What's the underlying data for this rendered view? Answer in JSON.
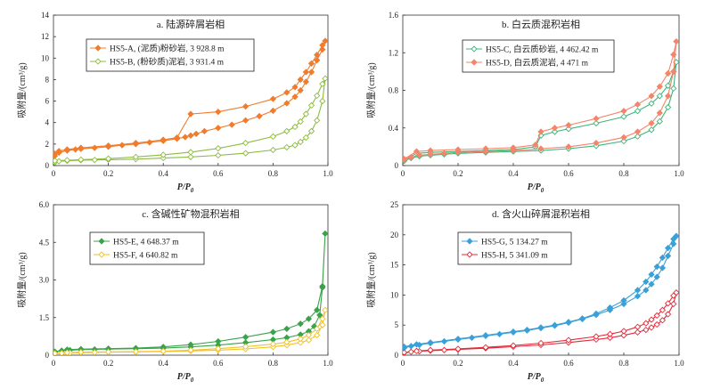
{
  "chart_data": [
    {
      "type": "line",
      "title": "a. 陆源碎屑岩相",
      "xlabel_main": "P/P",
      "xlabel_sub": "0",
      "ylabel": "吸附量/(cm³/g)",
      "xlim": [
        0,
        1.0
      ],
      "ylim": [
        0,
        14
      ],
      "xticks": [
        "0",
        "0.2",
        "0.4",
        "0.6",
        "0.8",
        "1.0"
      ],
      "yticks": [
        "0",
        "2",
        "4",
        "6",
        "8",
        "10",
        "12",
        "14"
      ],
      "legend_position": "top-left",
      "series": [
        {
          "name": "HS5-A, (泥质)粉砂岩, 3 928.8 m",
          "color": "#f07c2c",
          "marker": "diamond-filled",
          "x": [
            0.005,
            0.02,
            0.05,
            0.08,
            0.1,
            0.15,
            0.2,
            0.25,
            0.3,
            0.35,
            0.4,
            0.45,
            0.48,
            0.5,
            0.52,
            0.55,
            0.6,
            0.65,
            0.7,
            0.75,
            0.8,
            0.85,
            0.88,
            0.9,
            0.92,
            0.94,
            0.96,
            0.98,
            0.99,
            0.98,
            0.96,
            0.94,
            0.92,
            0.9,
            0.88,
            0.85,
            0.8,
            0.7,
            0.6,
            0.5,
            0.45,
            0.4,
            0.3,
            0.2,
            0.1,
            0.05,
            0.02,
            0.005
          ],
          "y": [
            0.9,
            1.2,
            1.4,
            1.5,
            1.55,
            1.65,
            1.75,
            1.9,
            2.0,
            2.15,
            2.3,
            2.5,
            2.65,
            2.8,
            2.95,
            3.2,
            3.5,
            3.8,
            4.2,
            4.6,
            5.1,
            5.8,
            6.4,
            7.0,
            7.8,
            8.7,
            9.8,
            10.8,
            11.6,
            11.2,
            10.3,
            9.5,
            8.7,
            8.0,
            7.3,
            6.8,
            6.2,
            5.5,
            5.0,
            4.8,
            2.6,
            2.4,
            2.1,
            1.85,
            1.65,
            1.5,
            1.35,
            1.1
          ]
        },
        {
          "name": "HS5-B, (粉砂质)泥岩, 3 931.4 m",
          "color": "#8cbd3f",
          "marker": "diamond-open",
          "x": [
            0.005,
            0.02,
            0.05,
            0.1,
            0.15,
            0.2,
            0.3,
            0.4,
            0.5,
            0.6,
            0.7,
            0.8,
            0.85,
            0.88,
            0.9,
            0.92,
            0.94,
            0.96,
            0.98,
            0.99,
            0.98,
            0.96,
            0.94,
            0.92,
            0.9,
            0.88,
            0.85,
            0.8,
            0.7,
            0.6,
            0.5,
            0.4,
            0.3,
            0.2,
            0.1,
            0.05,
            0.005
          ],
          "y": [
            0.3,
            0.4,
            0.45,
            0.5,
            0.52,
            0.55,
            0.6,
            0.7,
            0.8,
            0.95,
            1.15,
            1.45,
            1.7,
            1.9,
            2.2,
            2.6,
            3.2,
            4.2,
            6.0,
            8.1,
            7.6,
            6.5,
            5.6,
            4.8,
            4.1,
            3.6,
            3.2,
            2.7,
            2.1,
            1.6,
            1.25,
            1.0,
            0.8,
            0.65,
            0.55,
            0.5,
            0.45
          ]
        }
      ]
    },
    {
      "type": "line",
      "title": "b. 白云质混积岩相",
      "xlabel_main": "P/P",
      "xlabel_sub": "0",
      "ylabel": "吸附量/(cm³/g)",
      "xlim": [
        0,
        1.0
      ],
      "ylim": [
        0,
        1.6
      ],
      "xticks": [
        "0",
        "0.2",
        "0.4",
        "0.6",
        "0.8",
        "1.0"
      ],
      "yticks": [
        "0",
        "0.4",
        "0.8",
        "1.2",
        "1.6"
      ],
      "legend_position": "top-left",
      "series": [
        {
          "name": "HS5-C, 白云质砂岩, 4 462.42 m",
          "color": "#3db57a",
          "marker": "diamond-open",
          "x": [
            0.005,
            0.03,
            0.06,
            0.1,
            0.15,
            0.2,
            0.3,
            0.4,
            0.5,
            0.6,
            0.7,
            0.8,
            0.85,
            0.9,
            0.93,
            0.96,
            0.98,
            0.99,
            0.98,
            0.96,
            0.93,
            0.9,
            0.85,
            0.8,
            0.7,
            0.6,
            0.55,
            0.5,
            0.48,
            0.4,
            0.3,
            0.2,
            0.1,
            0.05,
            0.005
          ],
          "y": [
            0.05,
            0.08,
            0.1,
            0.11,
            0.12,
            0.13,
            0.14,
            0.15,
            0.16,
            0.18,
            0.21,
            0.26,
            0.31,
            0.38,
            0.47,
            0.62,
            0.82,
            1.1,
            1.0,
            0.85,
            0.74,
            0.66,
            0.58,
            0.52,
            0.45,
            0.39,
            0.36,
            0.32,
            0.2,
            0.17,
            0.16,
            0.15,
            0.14,
            0.13,
            0.06
          ]
        },
        {
          "name": "HS5-D, 白云质泥岩, 4 471 m",
          "color": "#f4846a",
          "marker": "diamond-filled",
          "x": [
            0.005,
            0.03,
            0.06,
            0.1,
            0.15,
            0.2,
            0.3,
            0.4,
            0.5,
            0.6,
            0.7,
            0.8,
            0.85,
            0.9,
            0.93,
            0.96,
            0.98,
            0.99,
            0.98,
            0.96,
            0.93,
            0.9,
            0.85,
            0.8,
            0.7,
            0.6,
            0.55,
            0.5,
            0.48,
            0.4,
            0.3,
            0.2,
            0.1,
            0.05,
            0.005
          ],
          "y": [
            0.06,
            0.09,
            0.11,
            0.12,
            0.13,
            0.14,
            0.15,
            0.16,
            0.18,
            0.2,
            0.24,
            0.3,
            0.36,
            0.45,
            0.56,
            0.74,
            1.0,
            1.32,
            1.18,
            0.98,
            0.84,
            0.74,
            0.65,
            0.58,
            0.5,
            0.43,
            0.4,
            0.36,
            0.22,
            0.19,
            0.18,
            0.17,
            0.16,
            0.15,
            0.07
          ]
        }
      ]
    },
    {
      "type": "line",
      "title": "c. 含碱性矿物混积岩相",
      "xlabel_main": "P/P",
      "xlabel_sub": "0",
      "ylabel": "吸附量/(cm³/g)",
      "xlim": [
        0,
        1.0
      ],
      "ylim": [
        0,
        6.0
      ],
      "xticks": [
        "0",
        "0.2",
        "0.4",
        "0.6",
        "0.8",
        "1.0"
      ],
      "yticks": [
        "0",
        "1.5",
        "3.0",
        "4.5",
        "6.0"
      ],
      "legend_position": "top-left",
      "series": [
        {
          "name": "HS5-E, 4 648.37 m",
          "color": "#3aa34a",
          "marker": "diamond-filled",
          "x": [
            0.005,
            0.03,
            0.06,
            0.1,
            0.15,
            0.2,
            0.3,
            0.4,
            0.5,
            0.6,
            0.7,
            0.8,
            0.85,
            0.9,
            0.93,
            0.95,
            0.97,
            0.98,
            0.99,
            0.98,
            0.96,
            0.93,
            0.9,
            0.85,
            0.8,
            0.7,
            0.6,
            0.5,
            0.4,
            0.3,
            0.2,
            0.1,
            0.05,
            0.005
          ],
          "y": [
            0.12,
            0.18,
            0.2,
            0.22,
            0.23,
            0.24,
            0.26,
            0.28,
            0.33,
            0.4,
            0.5,
            0.62,
            0.7,
            0.82,
            0.95,
            1.15,
            1.6,
            2.7,
            4.85,
            2.75,
            1.8,
            1.45,
            1.25,
            1.05,
            0.92,
            0.72,
            0.55,
            0.42,
            0.33,
            0.28,
            0.26,
            0.24,
            0.22,
            0.14
          ]
        },
        {
          "name": "HS5-F, 4 640.82 m",
          "color": "#f2c225",
          "marker": "diamond-open",
          "x": [
            0.005,
            0.03,
            0.06,
            0.1,
            0.15,
            0.2,
            0.3,
            0.4,
            0.5,
            0.6,
            0.7,
            0.8,
            0.85,
            0.9,
            0.93,
            0.96,
            0.98,
            0.99,
            0.98,
            0.96,
            0.93,
            0.9,
            0.85,
            0.8,
            0.7,
            0.6,
            0.5,
            0.4,
            0.3,
            0.2,
            0.1,
            0.05,
            0.005
          ],
          "y": [
            0.06,
            0.08,
            0.09,
            0.1,
            0.11,
            0.12,
            0.13,
            0.15,
            0.17,
            0.2,
            0.25,
            0.33,
            0.4,
            0.5,
            0.6,
            0.8,
            1.2,
            1.8,
            1.45,
            1.05,
            0.8,
            0.65,
            0.52,
            0.44,
            0.34,
            0.26,
            0.2,
            0.16,
            0.14,
            0.13,
            0.12,
            0.1,
            0.07
          ]
        }
      ]
    },
    {
      "type": "line",
      "title": "d. 含火山碎屑混积岩相",
      "xlabel_main": "P/P",
      "xlabel_sub": "0",
      "ylabel": "吸附量/(cm³/g)",
      "xlim": [
        0,
        1.0
      ],
      "ylim": [
        0,
        25
      ],
      "xticks": [
        "0",
        "0.2",
        "0.4",
        "0.6",
        "0.8",
        "1.0"
      ],
      "yticks": [
        "0",
        "5",
        "10",
        "15",
        "20",
        "25"
      ],
      "legend_position": "top-left",
      "series": [
        {
          "name": "HS5-G, 5 134.27 m",
          "color": "#3aa0d8",
          "marker": "diamond-filled",
          "x": [
            0.005,
            0.03,
            0.06,
            0.1,
            0.15,
            0.2,
            0.25,
            0.3,
            0.35,
            0.4,
            0.45,
            0.5,
            0.55,
            0.6,
            0.65,
            0.7,
            0.75,
            0.8,
            0.85,
            0.88,
            0.9,
            0.92,
            0.94,
            0.96,
            0.98,
            0.99,
            0.98,
            0.96,
            0.94,
            0.92,
            0.9,
            0.88,
            0.85,
            0.8,
            0.75,
            0.7,
            0.65,
            0.6,
            0.55,
            0.5,
            0.45,
            0.4,
            0.3,
            0.2,
            0.1,
            0.05,
            0.005
          ],
          "y": [
            1.2,
            1.5,
            1.7,
            2.0,
            2.3,
            2.6,
            2.9,
            3.2,
            3.5,
            3.8,
            4.1,
            4.5,
            4.9,
            5.4,
            6.0,
            6.7,
            7.5,
            8.5,
            9.8,
            10.8,
            11.8,
            13.0,
            14.5,
            16.5,
            18.5,
            19.8,
            19.3,
            17.8,
            16.2,
            14.7,
            13.4,
            12.2,
            10.8,
            9.1,
            7.9,
            6.9,
            6.1,
            5.5,
            5.0,
            4.6,
            4.2,
            3.9,
            3.3,
            2.7,
            2.1,
            1.8,
            1.4
          ]
        },
        {
          "name": "HS5-H, 5 341.09 m",
          "color": "#e32b3a",
          "marker": "diamond-open",
          "x": [
            0.005,
            0.03,
            0.06,
            0.1,
            0.15,
            0.2,
            0.3,
            0.4,
            0.5,
            0.6,
            0.7,
            0.75,
            0.8,
            0.85,
            0.88,
            0.9,
            0.92,
            0.94,
            0.96,
            0.98,
            0.99,
            0.98,
            0.96,
            0.94,
            0.92,
            0.9,
            0.88,
            0.85,
            0.8,
            0.75,
            0.7,
            0.6,
            0.5,
            0.4,
            0.3,
            0.2,
            0.1,
            0.05,
            0.005
          ],
          "y": [
            0.4,
            0.55,
            0.65,
            0.75,
            0.85,
            0.95,
            1.15,
            1.4,
            1.7,
            2.1,
            2.6,
            2.9,
            3.3,
            3.8,
            4.2,
            4.6,
            5.1,
            5.8,
            6.8,
            8.5,
            10.4,
            9.9,
            8.6,
            7.5,
            6.6,
            5.9,
            5.3,
            4.7,
            4.0,
            3.5,
            3.1,
            2.5,
            2.0,
            1.6,
            1.3,
            1.05,
            0.85,
            0.7,
            0.45
          ]
        }
      ]
    }
  ]
}
